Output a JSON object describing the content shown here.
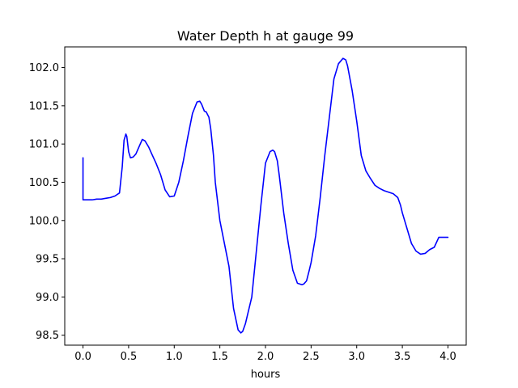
{
  "chart_data": {
    "type": "line",
    "title": "Water Depth h at gauge 99",
    "xlabel": "hours",
    "ylabel": "",
    "xlim": [
      -0.2,
      4.2
    ],
    "ylim": [
      98.37,
      102.27
    ],
    "xticks": [
      0.0,
      0.5,
      1.0,
      1.5,
      2.0,
      2.5,
      3.0,
      3.5,
      4.0
    ],
    "xtick_labels": [
      "0.0",
      "0.5",
      "1.0",
      "1.5",
      "2.0",
      "2.5",
      "3.0",
      "3.5",
      "4.0"
    ],
    "yticks": [
      98.5,
      99.0,
      99.5,
      100.0,
      100.5,
      101.0,
      101.5,
      102.0
    ],
    "ytick_labels": [
      "98.5",
      "99.0",
      "99.5",
      "100.0",
      "100.5",
      "101.0",
      "101.5",
      "102.0"
    ],
    "grid": false,
    "legend": "none",
    "series": [
      {
        "color": "#0000ff",
        "x": [
          0.0,
          0.0,
          0.05,
          0.1,
          0.15,
          0.2,
          0.25,
          0.3,
          0.35,
          0.4,
          0.43,
          0.45,
          0.47,
          0.48,
          0.5,
          0.52,
          0.55,
          0.58,
          0.62,
          0.65,
          0.68,
          0.72,
          0.75,
          0.8,
          0.85,
          0.9,
          0.95,
          1.0,
          1.05,
          1.1,
          1.15,
          1.2,
          1.25,
          1.28,
          1.3,
          1.33,
          1.35,
          1.38,
          1.4,
          1.43,
          1.45,
          1.5,
          1.55,
          1.6,
          1.65,
          1.7,
          1.73,
          1.75,
          1.78,
          1.8,
          1.85,
          1.9,
          1.95,
          2.0,
          2.05,
          2.08,
          2.1,
          2.13,
          2.15,
          2.2,
          2.25,
          2.3,
          2.35,
          2.4,
          2.42,
          2.45,
          2.48,
          2.5,
          2.55,
          2.6,
          2.65,
          2.7,
          2.75,
          2.8,
          2.85,
          2.88,
          2.9,
          2.95,
          3.0,
          3.05,
          3.1,
          3.15,
          3.2,
          3.25,
          3.3,
          3.35,
          3.4,
          3.45,
          3.48,
          3.5,
          3.55,
          3.6,
          3.65,
          3.7,
          3.75,
          3.78,
          3.8,
          3.85,
          3.9,
          3.95,
          4.0
        ],
        "y": [
          100.82,
          100.27,
          100.27,
          100.27,
          100.28,
          100.28,
          100.29,
          100.3,
          100.32,
          100.36,
          100.7,
          101.05,
          101.13,
          101.1,
          100.9,
          100.82,
          100.83,
          100.87,
          100.98,
          101.06,
          101.04,
          100.96,
          100.88,
          100.75,
          100.6,
          100.4,
          100.31,
          100.32,
          100.5,
          100.78,
          101.1,
          101.4,
          101.55,
          101.56,
          101.52,
          101.43,
          101.42,
          101.35,
          101.2,
          100.85,
          100.5,
          100.0,
          99.7,
          99.4,
          98.85,
          98.57,
          98.53,
          98.55,
          98.65,
          98.75,
          99.0,
          99.6,
          100.2,
          100.75,
          100.9,
          100.92,
          100.9,
          100.78,
          100.6,
          100.1,
          99.7,
          99.35,
          99.18,
          99.16,
          99.17,
          99.21,
          99.35,
          99.45,
          99.8,
          100.3,
          100.85,
          101.35,
          101.85,
          102.05,
          102.12,
          102.1,
          102.02,
          101.7,
          101.3,
          100.85,
          100.65,
          100.55,
          100.46,
          100.42,
          100.39,
          100.37,
          100.35,
          100.3,
          100.2,
          100.1,
          99.9,
          99.7,
          99.6,
          99.56,
          99.57,
          99.6,
          99.62,
          99.65,
          99.78,
          99.78,
          99.78
        ]
      }
    ]
  }
}
